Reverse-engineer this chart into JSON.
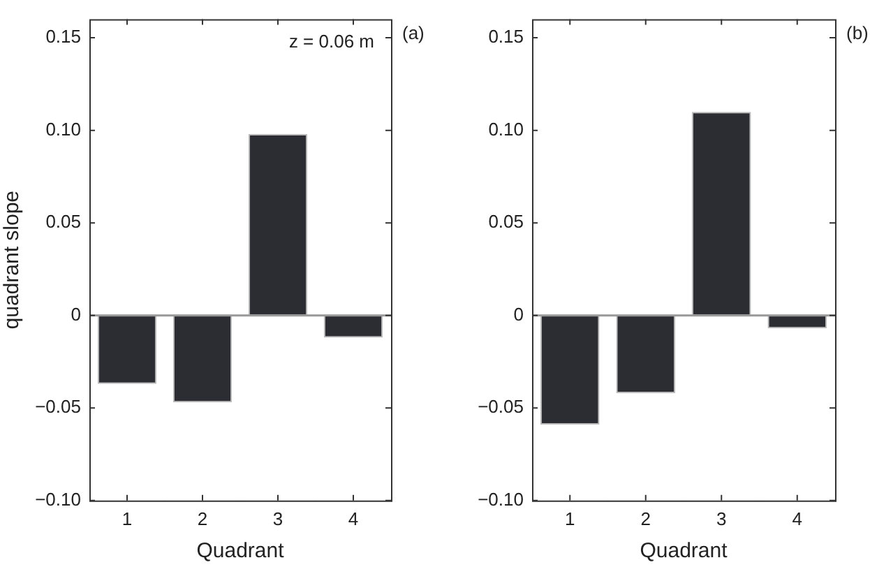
{
  "chart_data": [
    {
      "type": "bar",
      "xlabel": "Quadrant",
      "ylabel": "quadrant slope",
      "categories": [
        "1",
        "2",
        "3",
        "4"
      ],
      "values": [
        -0.037,
        -0.047,
        0.098,
        -0.012
      ],
      "color": "#2c2d33",
      "ylim": [
        -0.1,
        0.16
      ],
      "yticks": [
        {
          "value": -0.1,
          "label": "−0.10"
        },
        {
          "value": -0.05,
          "label": "−0.05"
        },
        0,
        0.05,
        {
          "value": 0.1,
          "label": "0.10"
        },
        0.15
      ],
      "ref_lines": [
        {
          "axis": "y",
          "value": 0,
          "color": "#999999"
        }
      ],
      "annotations": [
        "z = 0.06 m",
        "(a)"
      ],
      "grid": false,
      "legend": false
    },
    {
      "type": "bar",
      "xlabel": "Quadrant",
      "categories": [
        "1",
        "2",
        "3",
        "4"
      ],
      "values": [
        -0.059,
        -0.042,
        0.11,
        -0.007
      ],
      "color": "#2c2d33",
      "ylim": [
        -0.1,
        0.16
      ],
      "yticks": [
        {
          "value": -0.1,
          "label": "−0.10"
        },
        {
          "value": -0.05,
          "label": "−0.05"
        },
        0,
        0.05,
        {
          "value": 0.1,
          "label": "0.10"
        },
        0.15
      ],
      "ref_lines": [
        {
          "axis": "y",
          "value": 0,
          "color": "#999999"
        }
      ],
      "annotations": [
        "(b)"
      ],
      "grid": false,
      "legend": false
    }
  ]
}
